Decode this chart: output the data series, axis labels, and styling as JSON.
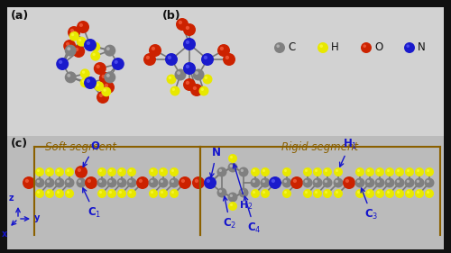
{
  "background_color": "#1a1a1a",
  "panel_bg": "#d8d8d8",
  "fig_width": 5.0,
  "fig_height": 2.81,
  "dpi": 100,
  "panel_a_label": "(a)",
  "panel_b_label": "(b)",
  "panel_c_label": "(c)",
  "legend_items": [
    {
      "label": "C",
      "color": "#808080"
    },
    {
      "label": "H",
      "color": "#e8e800"
    },
    {
      "label": "O",
      "color": "#cc2200"
    },
    {
      "label": "N",
      "color": "#1a1acc"
    }
  ],
  "legend_text_color": "#111111",
  "soft_segment_label": "Soft segment",
  "rigid_segment_label": "Rigid segment",
  "segment_box_color": "#8B6000",
  "label_color": "#1414cc",
  "panel_label_color": "#111111",
  "outer_bg": "#111111",
  "top_panel_bg": "#cccccc",
  "bottom_panel_bg": "#b8b8b8",
  "atom_colors": {
    "C": "#808080",
    "H": "#e8e800",
    "O": "#cc2200",
    "N": "#1a1acc"
  }
}
